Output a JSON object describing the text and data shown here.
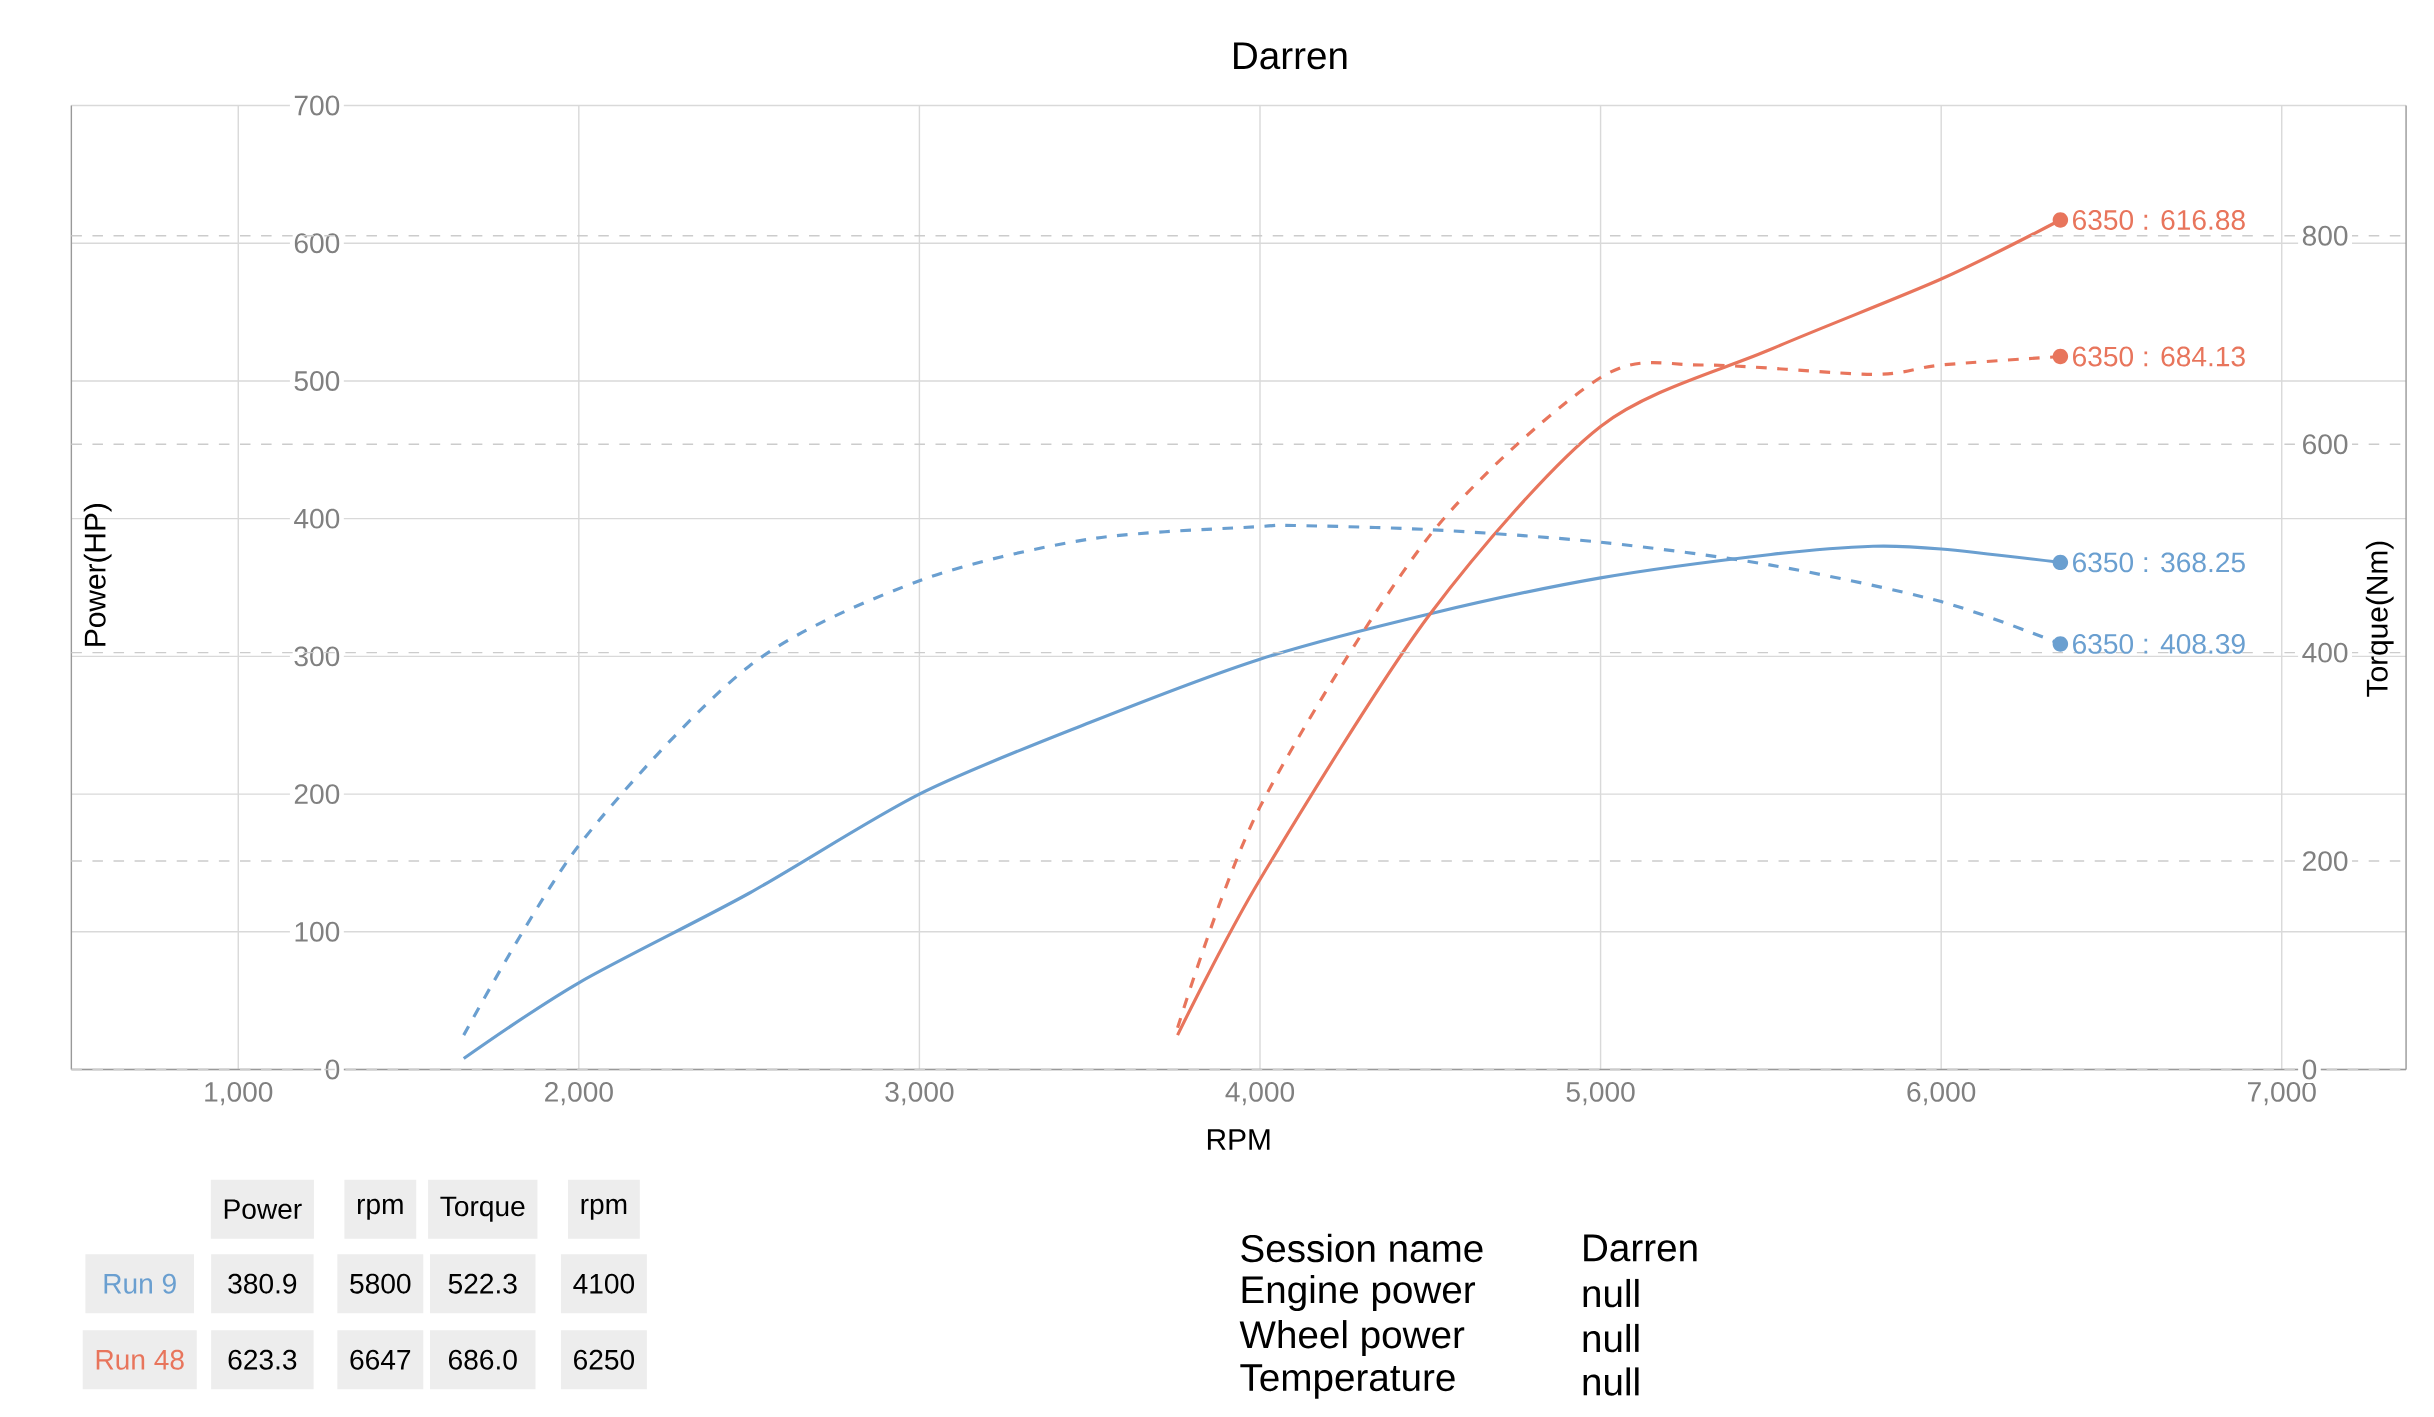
{
  "chart_data": {
    "type": "line",
    "title": "Darren",
    "xlabel": "RPM",
    "ylabel": "Power(HP)",
    "y2label": "Torque(Nm)",
    "xlim": [
      510,
      7365
    ],
    "xticks": [
      {
        "value": 1000,
        "label": "1,000"
      },
      {
        "value": 2000,
        "label": "2,000"
      },
      {
        "value": 3000,
        "label": "3,000"
      },
      {
        "value": 4000,
        "label": "4,000"
      },
      {
        "value": 5000,
        "label": "5,000"
      },
      {
        "value": 6000,
        "label": "6,000"
      },
      {
        "value": 7000,
        "label": "7,000"
      }
    ],
    "ylim": [
      0,
      700
    ],
    "yticks": [
      0,
      100,
      200,
      300,
      400,
      500,
      600,
      700
    ],
    "y2lim": [
      0,
      925
    ],
    "y2ticks": [
      0,
      200,
      400,
      600,
      800
    ],
    "grid": true,
    "series": [
      {
        "name": "Run 9",
        "color": "#6a9fd0",
        "x": [
          1662,
          2000,
          2500,
          3000,
          3500,
          4000,
          4500,
          5000,
          5500,
          5800,
          6000,
          6350
        ],
        "values": [
          8,
          63,
          128,
          200,
          252,
          298,
          331,
          357,
          374,
          380,
          378,
          368.25
        ],
        "value_labels": [
          null,
          null,
          null,
          null,
          null,
          null,
          null,
          null,
          null,
          null,
          null,
          "6350 : 368.25"
        ]
      },
      {
        "color": "#6a9fd0",
        "axis": "y2",
        "line_style": "dashed",
        "x": [
          1662,
          2000,
          2500,
          3000,
          3500,
          4000,
          4100,
          4500,
          5000,
          5500,
          6000,
          6350
        ],
        "values": [
          33,
          215,
          387,
          469,
          509,
          521,
          522,
          518,
          506,
          484,
          449,
          408.39
        ],
        "value_labels": [
          null,
          null,
          null,
          null,
          null,
          null,
          null,
          null,
          null,
          null,
          null,
          "6350 : 408.39"
        ]
      },
      {
        "name": "Run 48",
        "color": "#e8755c",
        "x": [
          3758,
          4000,
          4500,
          5000,
          5500,
          6000,
          6350
        ],
        "values": [
          25,
          138,
          331,
          467,
          523,
          574,
          616.88
        ],
        "value_labels": [
          null,
          null,
          null,
          null,
          null,
          null,
          "6350 : 616.88"
        ]
      },
      {
        "color": "#e8755c",
        "axis": "y2",
        "line_style": "dashed",
        "x": [
          3758,
          4000,
          4500,
          5000,
          5300,
          5800,
          6000,
          6350
        ],
        "values": [
          40,
          252,
          513,
          664,
          676,
          667,
          676,
          684.13
        ],
        "value_labels": [
          null,
          null,
          null,
          null,
          null,
          null,
          null,
          "6350 : 684.13"
        ]
      }
    ],
    "annotations": [
      "Power",
      "rpm",
      "Torque",
      "rpm",
      "380.9",
      "5800",
      "522.3",
      "4100",
      "623.3",
      "6647",
      "686.0",
      "6250",
      "Session name",
      "Darren",
      "Engine power",
      "null",
      "Wheel power",
      "null",
      "Temperature",
      "null"
    ]
  }
}
